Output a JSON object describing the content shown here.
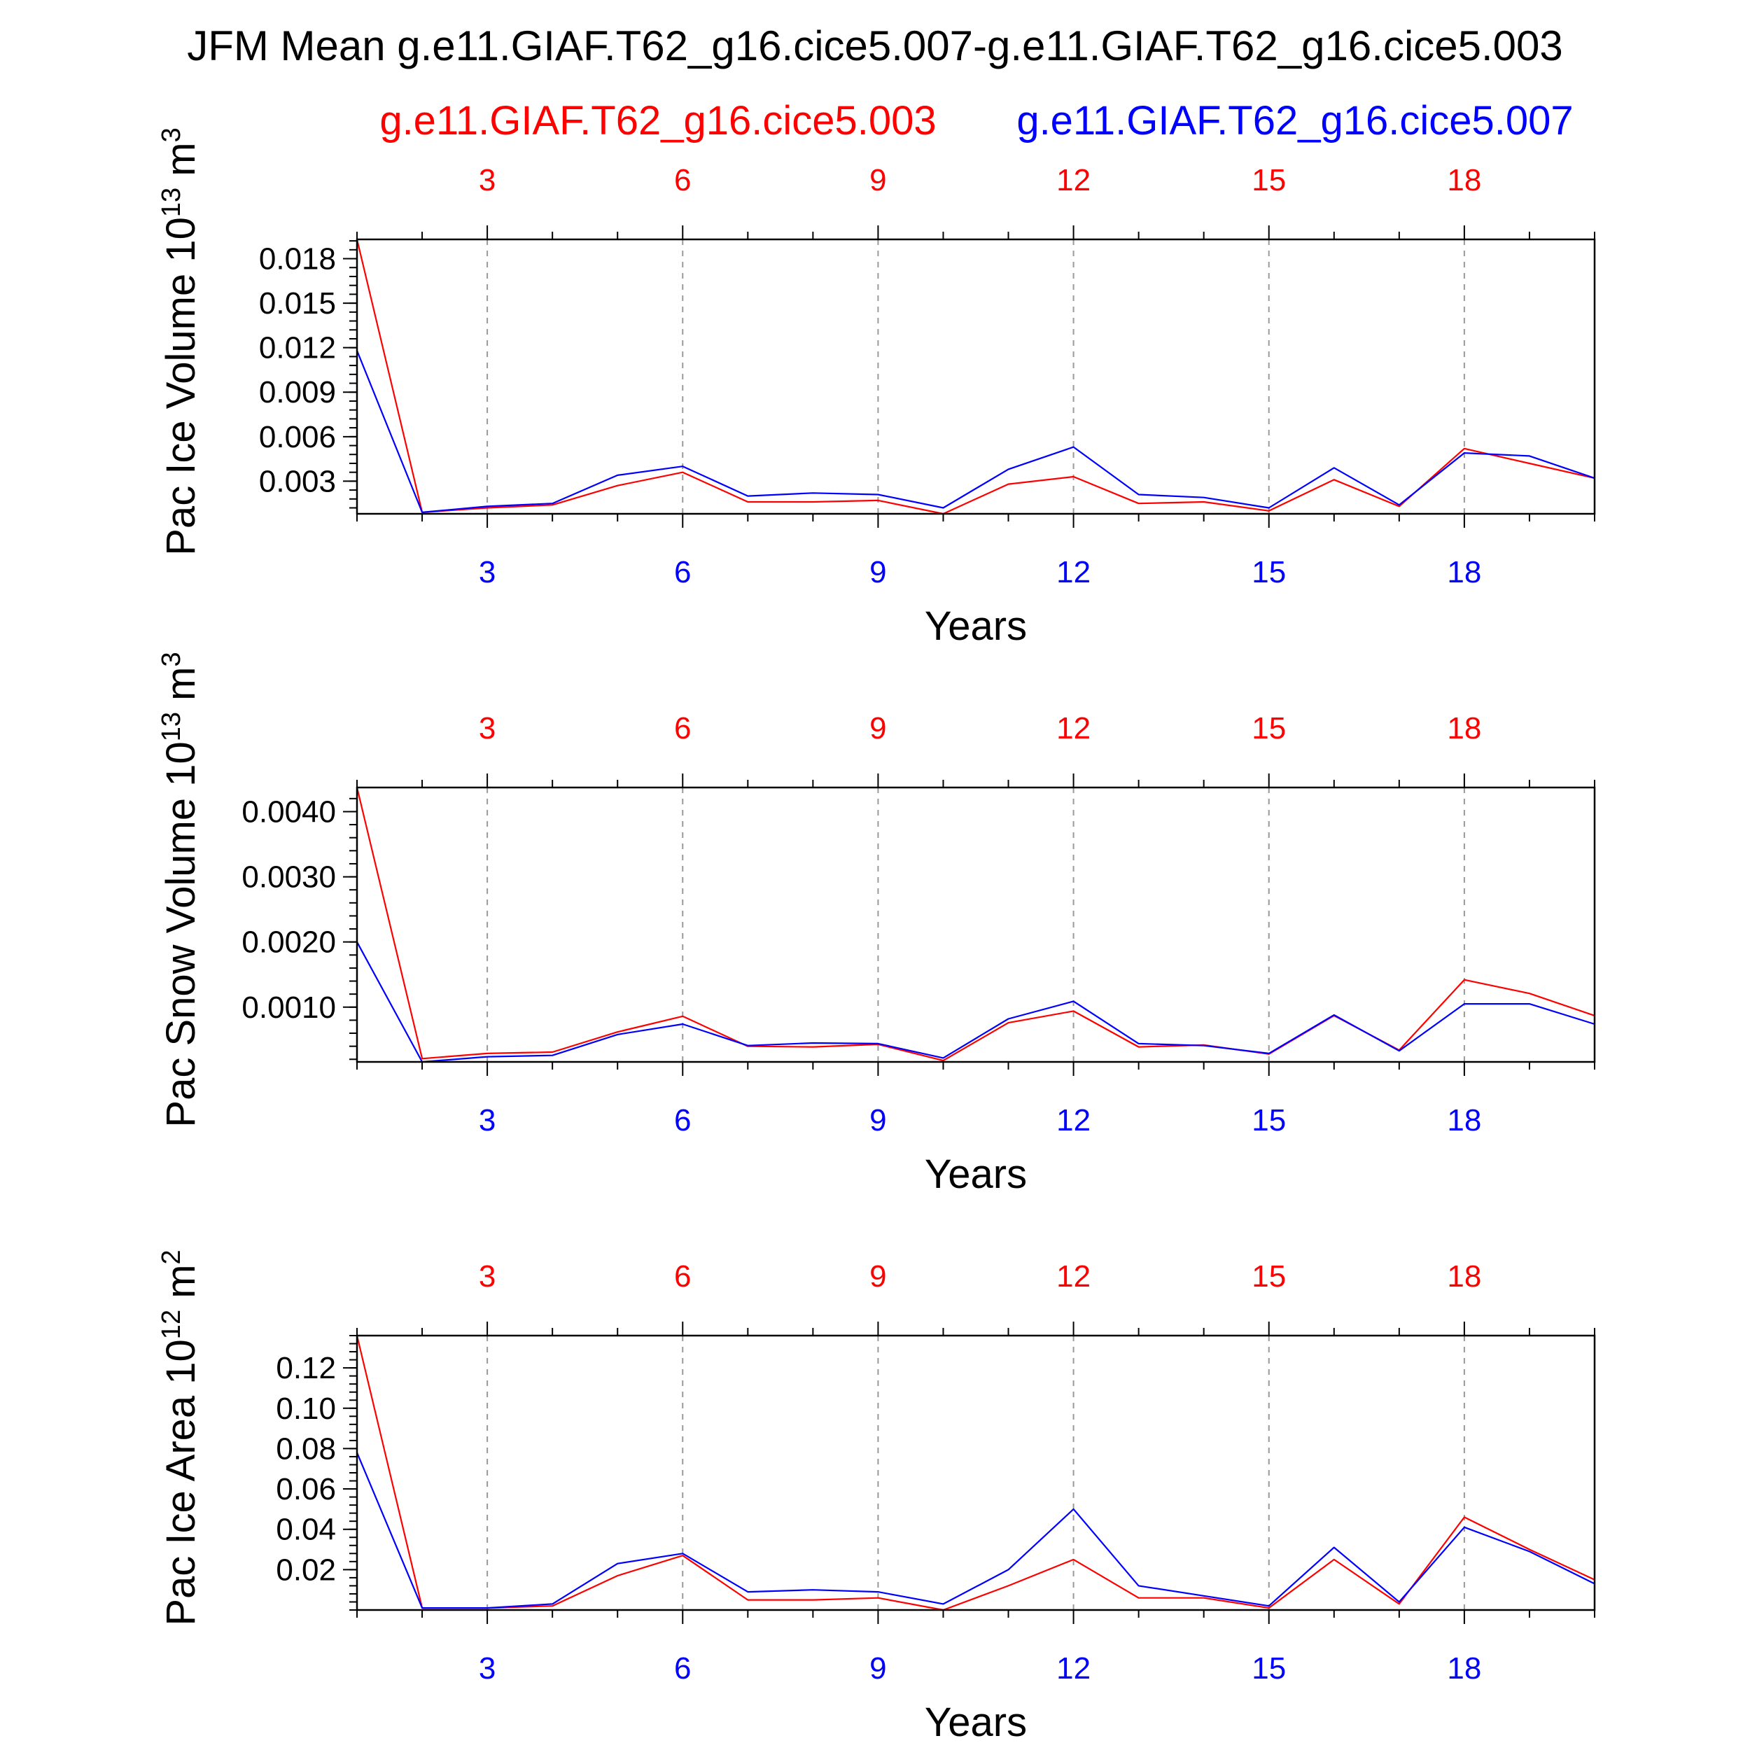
{
  "figure": {
    "title": "JFM Mean g.e11.GIAF.T62_g16.cice5.007-g.e11.GIAF.T62_g16.cice5.003",
    "legend_red": "g.e11.GIAF.T62_g16.cice5.003",
    "legend_blue": "g.e11.GIAF.T62_g16.cice5.007"
  },
  "colors": {
    "red": "#ff0000",
    "blue": "#0000ff",
    "axis": "#000000",
    "grid": "#999999"
  },
  "chart_data": [
    {
      "type": "line",
      "xlabel": "Years",
      "ylabel": "Pac Ice Volume 10",
      "ylabel_exp": "13",
      "ylabel_unit": " m",
      "ylabel_unit_exp": "3",
      "xlim": [
        1,
        20
      ],
      "ylim": [
        0.0008,
        0.0193
      ],
      "xticks": [
        3,
        6,
        9,
        12,
        15,
        18
      ],
      "yticks": [
        0.003,
        0.006,
        0.009,
        0.012,
        0.015,
        0.018
      ],
      "ytick_labels": [
        "0.003",
        "0.006",
        "0.009",
        "0.012",
        "0.015",
        "0.018"
      ],
      "x": [
        1,
        2,
        3,
        4,
        5,
        6,
        7,
        8,
        9,
        10,
        11,
        12,
        13,
        14,
        15,
        16,
        17,
        18,
        19,
        20
      ],
      "series": [
        {
          "name": "g.e11.GIAF.T62_g16.cice5.003",
          "color": "red",
          "values": [
            0.0193,
            0.0009,
            0.0012,
            0.0014,
            0.0027,
            0.0036,
            0.0016,
            0.0016,
            0.0017,
            0.0008,
            0.0028,
            0.0033,
            0.0015,
            0.0016,
            0.001,
            0.0031,
            0.0013,
            0.0052,
            0.0042,
            0.0032
          ]
        },
        {
          "name": "g.e11.GIAF.T62_g16.cice5.007",
          "color": "blue",
          "values": [
            0.0118,
            0.0009,
            0.0013,
            0.0015,
            0.0034,
            0.004,
            0.002,
            0.0022,
            0.0021,
            0.0012,
            0.0038,
            0.0053,
            0.0021,
            0.0019,
            0.0012,
            0.0039,
            0.0014,
            0.0049,
            0.0047,
            0.0032
          ]
        }
      ]
    },
    {
      "type": "line",
      "xlabel": "Years",
      "ylabel": "Pac Snow Volume 10",
      "ylabel_exp": "13",
      "ylabel_unit": " m",
      "ylabel_unit_exp": "3",
      "xlim": [
        1,
        20
      ],
      "ylim": [
        0.00016,
        0.00437
      ],
      "xticks": [
        3,
        6,
        9,
        12,
        15,
        18
      ],
      "yticks": [
        0.001,
        0.002,
        0.003,
        0.004
      ],
      "ytick_labels": [
        "0.0010",
        "0.0020",
        "0.0030",
        "0.0040"
      ],
      "x": [
        1,
        2,
        3,
        4,
        5,
        6,
        7,
        8,
        9,
        10,
        11,
        12,
        13,
        14,
        15,
        16,
        17,
        18,
        19,
        20
      ],
      "series": [
        {
          "name": "g.e11.GIAF.T62_g16.cice5.003",
          "color": "red",
          "values": [
            0.00437,
            0.00021,
            0.00029,
            0.00031,
            0.00062,
            0.00086,
            0.0004,
            0.00039,
            0.00043,
            0.00018,
            0.00076,
            0.00094,
            0.00039,
            0.00042,
            0.00028,
            0.00087,
            0.00034,
            0.00142,
            0.00121,
            0.00087
          ]
        },
        {
          "name": "g.e11.GIAF.T62_g16.cice5.007",
          "color": "blue",
          "values": [
            0.002,
            0.00016,
            0.00024,
            0.00026,
            0.00058,
            0.00074,
            0.00041,
            0.00045,
            0.00044,
            0.00022,
            0.00082,
            0.00109,
            0.00044,
            0.00041,
            0.00029,
            0.00088,
            0.00033,
            0.00105,
            0.00105,
            0.00074
          ]
        }
      ]
    },
    {
      "type": "line",
      "xlabel": "Years",
      "ylabel": "Pac Ice Area 10",
      "ylabel_exp": "12",
      "ylabel_unit": " m",
      "ylabel_unit_exp": "2",
      "xlim": [
        1,
        20
      ],
      "ylim": [
        0.0,
        0.136
      ],
      "xticks": [
        3,
        6,
        9,
        12,
        15,
        18
      ],
      "yticks": [
        0.02,
        0.04,
        0.06,
        0.08,
        0.1,
        0.12
      ],
      "ytick_labels": [
        "0.02",
        "0.04",
        "0.06",
        "0.08",
        "0.10",
        "0.12"
      ],
      "x": [
        1,
        2,
        3,
        4,
        5,
        6,
        7,
        8,
        9,
        10,
        11,
        12,
        13,
        14,
        15,
        16,
        17,
        18,
        19,
        20
      ],
      "series": [
        {
          "name": "g.e11.GIAF.T62_g16.cice5.003",
          "color": "red",
          "values": [
            0.136,
            0.001,
            0.001,
            0.002,
            0.017,
            0.027,
            0.005,
            0.005,
            0.006,
            0.0,
            0.012,
            0.025,
            0.006,
            0.006,
            0.001,
            0.025,
            0.003,
            0.046,
            0.03,
            0.015
          ]
        },
        {
          "name": "g.e11.GIAF.T62_g16.cice5.007",
          "color": "blue",
          "values": [
            0.078,
            0.001,
            0.001,
            0.003,
            0.023,
            0.028,
            0.009,
            0.01,
            0.009,
            0.003,
            0.02,
            0.05,
            0.012,
            0.007,
            0.002,
            0.031,
            0.004,
            0.041,
            0.029,
            0.013
          ]
        }
      ]
    }
  ]
}
